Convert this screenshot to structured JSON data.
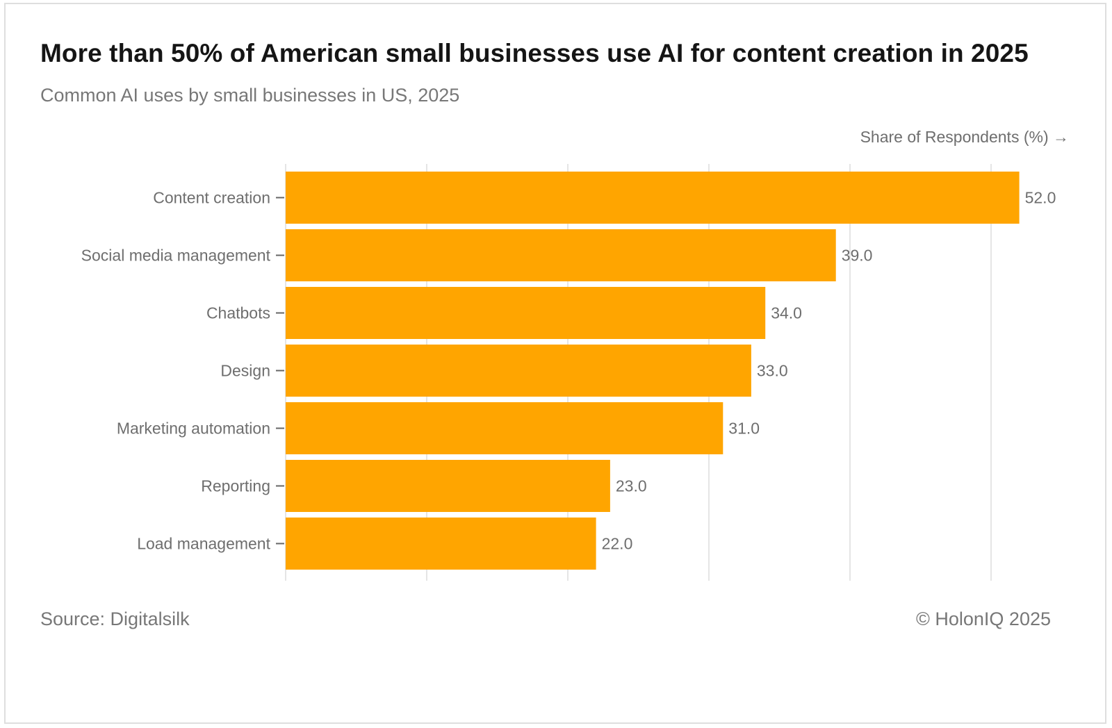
{
  "header": {
    "title": "More than 50% of American small businesses use AI for content creation in 2025",
    "subtitle": "Common AI uses by small businesses in US, 2025"
  },
  "footer": {
    "source": "Source: Digitalsilk",
    "copyright": "© HolonIQ 2025"
  },
  "colors": {
    "bar": "#FFA500",
    "grid": "#e5e5e5",
    "text": "#6e6e6e"
  },
  "chart_data": {
    "type": "bar",
    "orientation": "horizontal",
    "title": "More than 50% of American small businesses use AI for content creation in 2025",
    "subtitle": "Common AI uses by small businesses in US, 2025",
    "xlabel": "Share of Respondents (%) →",
    "ylabel": "",
    "xlim": [
      0,
      52.5
    ],
    "grid": true,
    "categories": [
      "Content creation",
      "Social media management",
      "Chatbots",
      "Design",
      "Marketing automation",
      "Reporting",
      "Load management"
    ],
    "values": [
      52.0,
      39.0,
      34.0,
      33.0,
      31.0,
      23.0,
      22.0
    ],
    "value_labels": [
      "52.0",
      "39.0",
      "34.0",
      "33.0",
      "31.0",
      "23.0",
      "22.0"
    ]
  }
}
